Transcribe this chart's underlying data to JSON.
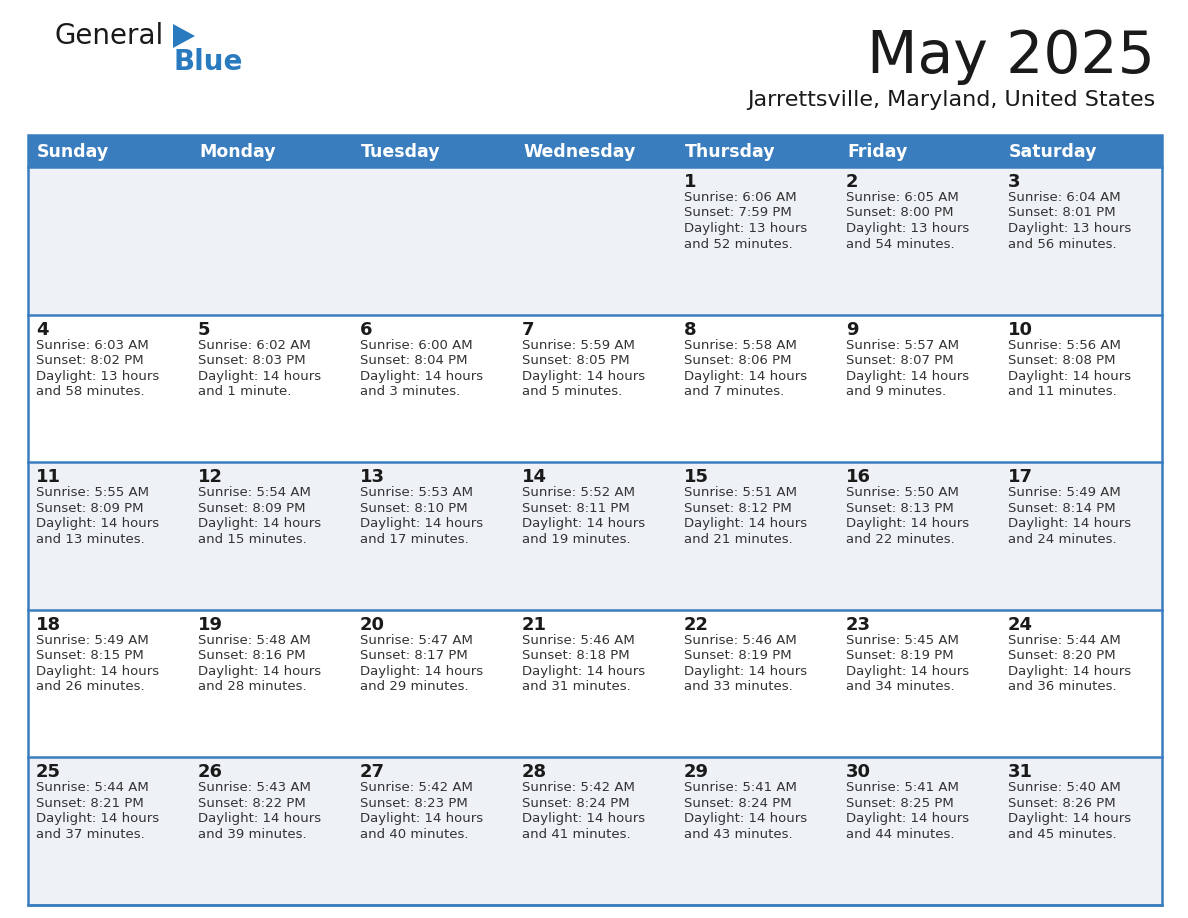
{
  "title": "May 2025",
  "subtitle": "Jarrettsville, Maryland, United States",
  "days_of_week": [
    "Sunday",
    "Monday",
    "Tuesday",
    "Wednesday",
    "Thursday",
    "Friday",
    "Saturday"
  ],
  "header_bg": "#3a7dbf",
  "header_text": "#ffffff",
  "row_bg_odd": "#eef2f7",
  "row_bg_even": "#ffffff",
  "border_color": "#3a7dbf",
  "day_num_color": "#1a1a1a",
  "cell_text_color": "#333333",
  "calendar": [
    [
      null,
      null,
      null,
      null,
      {
        "day": 1,
        "sunrise": "6:06 AM",
        "sunset": "7:59 PM",
        "daylight_line1": "Daylight: 13 hours",
        "daylight_line2": "and 52 minutes."
      },
      {
        "day": 2,
        "sunrise": "6:05 AM",
        "sunset": "8:00 PM",
        "daylight_line1": "Daylight: 13 hours",
        "daylight_line2": "and 54 minutes."
      },
      {
        "day": 3,
        "sunrise": "6:04 AM",
        "sunset": "8:01 PM",
        "daylight_line1": "Daylight: 13 hours",
        "daylight_line2": "and 56 minutes."
      }
    ],
    [
      {
        "day": 4,
        "sunrise": "6:03 AM",
        "sunset": "8:02 PM",
        "daylight_line1": "Daylight: 13 hours",
        "daylight_line2": "and 58 minutes."
      },
      {
        "day": 5,
        "sunrise": "6:02 AM",
        "sunset": "8:03 PM",
        "daylight_line1": "Daylight: 14 hours",
        "daylight_line2": "and 1 minute."
      },
      {
        "day": 6,
        "sunrise": "6:00 AM",
        "sunset": "8:04 PM",
        "daylight_line1": "Daylight: 14 hours",
        "daylight_line2": "and 3 minutes."
      },
      {
        "day": 7,
        "sunrise": "5:59 AM",
        "sunset": "8:05 PM",
        "daylight_line1": "Daylight: 14 hours",
        "daylight_line2": "and 5 minutes."
      },
      {
        "day": 8,
        "sunrise": "5:58 AM",
        "sunset": "8:06 PM",
        "daylight_line1": "Daylight: 14 hours",
        "daylight_line2": "and 7 minutes."
      },
      {
        "day": 9,
        "sunrise": "5:57 AM",
        "sunset": "8:07 PM",
        "daylight_line1": "Daylight: 14 hours",
        "daylight_line2": "and 9 minutes."
      },
      {
        "day": 10,
        "sunrise": "5:56 AM",
        "sunset": "8:08 PM",
        "daylight_line1": "Daylight: 14 hours",
        "daylight_line2": "and 11 minutes."
      }
    ],
    [
      {
        "day": 11,
        "sunrise": "5:55 AM",
        "sunset": "8:09 PM",
        "daylight_line1": "Daylight: 14 hours",
        "daylight_line2": "and 13 minutes."
      },
      {
        "day": 12,
        "sunrise": "5:54 AM",
        "sunset": "8:09 PM",
        "daylight_line1": "Daylight: 14 hours",
        "daylight_line2": "and 15 minutes."
      },
      {
        "day": 13,
        "sunrise": "5:53 AM",
        "sunset": "8:10 PM",
        "daylight_line1": "Daylight: 14 hours",
        "daylight_line2": "and 17 minutes."
      },
      {
        "day": 14,
        "sunrise": "5:52 AM",
        "sunset": "8:11 PM",
        "daylight_line1": "Daylight: 14 hours",
        "daylight_line2": "and 19 minutes."
      },
      {
        "day": 15,
        "sunrise": "5:51 AM",
        "sunset": "8:12 PM",
        "daylight_line1": "Daylight: 14 hours",
        "daylight_line2": "and 21 minutes."
      },
      {
        "day": 16,
        "sunrise": "5:50 AM",
        "sunset": "8:13 PM",
        "daylight_line1": "Daylight: 14 hours",
        "daylight_line2": "and 22 minutes."
      },
      {
        "day": 17,
        "sunrise": "5:49 AM",
        "sunset": "8:14 PM",
        "daylight_line1": "Daylight: 14 hours",
        "daylight_line2": "and 24 minutes."
      }
    ],
    [
      {
        "day": 18,
        "sunrise": "5:49 AM",
        "sunset": "8:15 PM",
        "daylight_line1": "Daylight: 14 hours",
        "daylight_line2": "and 26 minutes."
      },
      {
        "day": 19,
        "sunrise": "5:48 AM",
        "sunset": "8:16 PM",
        "daylight_line1": "Daylight: 14 hours",
        "daylight_line2": "and 28 minutes."
      },
      {
        "day": 20,
        "sunrise": "5:47 AM",
        "sunset": "8:17 PM",
        "daylight_line1": "Daylight: 14 hours",
        "daylight_line2": "and 29 minutes."
      },
      {
        "day": 21,
        "sunrise": "5:46 AM",
        "sunset": "8:18 PM",
        "daylight_line1": "Daylight: 14 hours",
        "daylight_line2": "and 31 minutes."
      },
      {
        "day": 22,
        "sunrise": "5:46 AM",
        "sunset": "8:19 PM",
        "daylight_line1": "Daylight: 14 hours",
        "daylight_line2": "and 33 minutes."
      },
      {
        "day": 23,
        "sunrise": "5:45 AM",
        "sunset": "8:19 PM",
        "daylight_line1": "Daylight: 14 hours",
        "daylight_line2": "and 34 minutes."
      },
      {
        "day": 24,
        "sunrise": "5:44 AM",
        "sunset": "8:20 PM",
        "daylight_line1": "Daylight: 14 hours",
        "daylight_line2": "and 36 minutes."
      }
    ],
    [
      {
        "day": 25,
        "sunrise": "5:44 AM",
        "sunset": "8:21 PM",
        "daylight_line1": "Daylight: 14 hours",
        "daylight_line2": "and 37 minutes."
      },
      {
        "day": 26,
        "sunrise": "5:43 AM",
        "sunset": "8:22 PM",
        "daylight_line1": "Daylight: 14 hours",
        "daylight_line2": "and 39 minutes."
      },
      {
        "day": 27,
        "sunrise": "5:42 AM",
        "sunset": "8:23 PM",
        "daylight_line1": "Daylight: 14 hours",
        "daylight_line2": "and 40 minutes."
      },
      {
        "day": 28,
        "sunrise": "5:42 AM",
        "sunset": "8:24 PM",
        "daylight_line1": "Daylight: 14 hours",
        "daylight_line2": "and 41 minutes."
      },
      {
        "day": 29,
        "sunrise": "5:41 AM",
        "sunset": "8:24 PM",
        "daylight_line1": "Daylight: 14 hours",
        "daylight_line2": "and 43 minutes."
      },
      {
        "day": 30,
        "sunrise": "5:41 AM",
        "sunset": "8:25 PM",
        "daylight_line1": "Daylight: 14 hours",
        "daylight_line2": "and 44 minutes."
      },
      {
        "day": 31,
        "sunrise": "5:40 AM",
        "sunset": "8:26 PM",
        "daylight_line1": "Daylight: 14 hours",
        "daylight_line2": "and 45 minutes."
      }
    ]
  ]
}
